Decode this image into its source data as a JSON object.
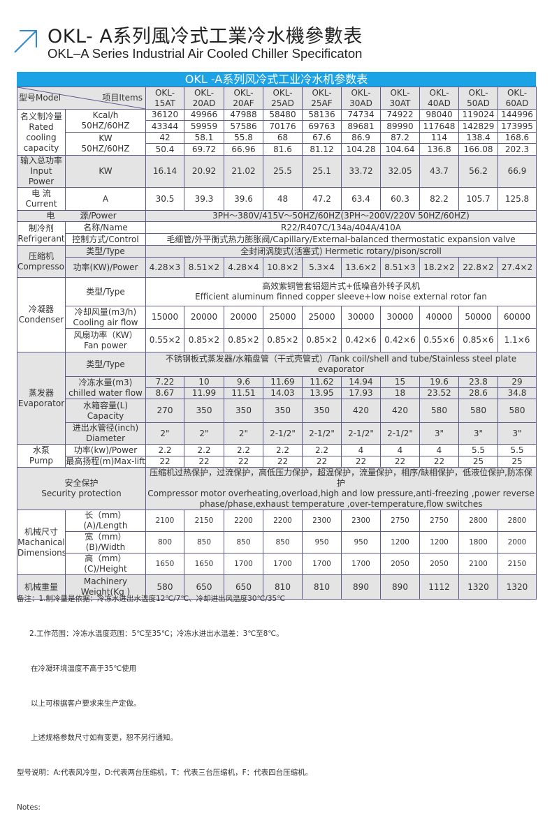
{
  "title": {
    "cn": "OKL- A系列風冷式工業冷水機參數表",
    "en": "OKL–A Series Industrial Air Cooled Chiller Specificaton",
    "accent_color": "#2a8ad0",
    "icon": "arrow-up-right-icon"
  },
  "banner": {
    "text": "OKL -A系列风冷式工业冷水机参数表",
    "color": "#1ba3e6"
  },
  "table": {
    "header": {
      "model_label": "型号Model",
      "items_label": "项目Items"
    },
    "models": [
      "OKL-\n15AT",
      "OKL-\n20AD",
      "OKL-\n20AF",
      "OKL-\n25AD",
      "OKL-\n25AF",
      "OKL-\n30AD",
      "OKL-\n30AT",
      "OKL-\n40AD",
      "OKL-\n50AD",
      "OKL-\n60AD"
    ],
    "cooling": {
      "label": "名义制冷量\nRated\ncooling\ncapacity",
      "kcal_unit": "Kcal/h\n50HZ/60HZ",
      "kw_unit": "KW\n50HZ/60HZ",
      "kcal_50": [
        "36120",
        "49966",
        "47988",
        "58480",
        "58136",
        "74734",
        "74922",
        "98040",
        "119024",
        "144996"
      ],
      "kcal_60": [
        "43344",
        "59959",
        "57586",
        "70176",
        "69763",
        "89681",
        "89990",
        "117648",
        "142829",
        "173995"
      ],
      "kw_50": [
        "42",
        "58.1",
        "55.8",
        "68",
        "67.6",
        "86.9",
        "87.2",
        "114",
        "138.4",
        "168.6"
      ],
      "kw_60": [
        "50.4",
        "69.72",
        "66.96",
        "81.6",
        "81.12",
        "104.28",
        "104.64",
        "136.8",
        "166.08",
        "202.3"
      ]
    },
    "input_power": {
      "label": "输入总功率\nInput Power",
      "unit": "KW",
      "values": [
        "16.14",
        "20.92",
        "21.02",
        "25.5",
        "25.1",
        "33.72",
        "32.05",
        "43.7",
        "56.2",
        "66.9"
      ]
    },
    "current": {
      "label": "电  流\nCurrent",
      "unit": "A",
      "values": [
        "30.5",
        "39.3",
        "39.6",
        "48",
        "47.2",
        "63.4",
        "60.3",
        "82.2",
        "105.7",
        "125.8"
      ]
    },
    "power_supply": {
      "label": "电　　　源/Power",
      "value": "3PH～380V/415V～50HZ/60HZ(3PH～200V/220V   50HZ/60HZ)"
    },
    "refrigerant": {
      "label": "制冷剂\nRefrigerant",
      "name_label": "名称/Name",
      "name_value": "R22/R407C/134a/404A/410A",
      "control_label": "控制方式/Control",
      "control_value": "毛细管/外平衡式热力膨胀阀/Capillary/External-balanced thermostatic expansion valve"
    },
    "compressor": {
      "label": "压缩机\nCompressor",
      "type_label": "类型/Type",
      "type_value": "全封闭涡旋式(活塞式)        Hermetic rotary/pison/scroll",
      "power_label": "功率(KW)/Power",
      "power_values": [
        "4.28×3",
        "8.51×2",
        "4.28×4",
        "10.8×2",
        "5.3×4",
        "13.6×2",
        "8.51×3",
        "18.2×2",
        "22.8×2",
        "27.4×2"
      ]
    },
    "condenser": {
      "label": "冷凝器\nCondenser",
      "type_label": "类型/Type",
      "type_value": "高效紫铜管套铝翅片式+低噪音外转子风机\nEfficient aluminum finned copper sleeve+low noise external rotor fan",
      "airflow_label": "冷却风量(m3/h)\nCooling air flow",
      "airflow_values": [
        "15000",
        "20000",
        "20000",
        "25000",
        "25000",
        "30000",
        "30000",
        "40000",
        "50000",
        "60000"
      ],
      "fan_label": "风扇功率（KW）\nFan power",
      "fan_values": [
        "0.55×2",
        "0.85×2",
        "0.85×2",
        "0.85×2",
        "0.85×2",
        "0.42×6",
        "0.42×6",
        "0.55×6",
        "0.85×6",
        "1.1×6"
      ]
    },
    "evaporator": {
      "label": "蒸发器\nEvaporator",
      "type_label": "类型/Type",
      "type_value": "不锈钢板式蒸发器/水箱盘管（干式壳管式）/Tank coil/shell and tube/Stainless steel plate evaporator",
      "water_label": "冷冻水量(m3)\nchilled water flow",
      "water_50": [
        "7.22",
        "10",
        "9.6",
        "11.69",
        "11.62",
        "14.94",
        "15",
        "19.6",
        "23.8",
        "29"
      ],
      "water_60": [
        "8.67",
        "11.99",
        "11.51",
        "14.03",
        "13.95",
        "17.93",
        "18",
        "23.52",
        "28.6",
        "34.8"
      ],
      "capacity_label": "水箱容量(L)\nCapacity",
      "capacity_values": [
        "270",
        "350",
        "350",
        "350",
        "350",
        "420",
        "420",
        "580",
        "580",
        "580"
      ],
      "diameter_label": "进出水管径(inch)\nDiameter",
      "diameter_values": [
        "2\"",
        "2\"",
        "2\"",
        "2-1/2\"",
        "2-1/2\"",
        "2-1/2\"",
        "2-1/2\"",
        "3\"",
        "3\"",
        "3\""
      ]
    },
    "pump": {
      "label": "水泵\nPump",
      "power_label": "功率(kw)/Power",
      "power_values": [
        "2.2",
        "2.2",
        "2.2",
        "2.2",
        "2.2",
        "4",
        "4",
        "4",
        "5.5",
        "5.5"
      ],
      "lift_label": "最高扬程(m)Max-lift",
      "lift_values": [
        "22",
        "22",
        "22",
        "22",
        "22",
        "22",
        "22",
        "22",
        "25",
        "25"
      ]
    },
    "security": {
      "label": "安全保护\nSecurity protection",
      "value": "压缩机过热保护，过流保护，高低压力保护，超温保护，流量保护，相序/缺相保护，低液位保护,防冻保护\nCompressor motor overheating,overload,high and low pressure,anti-freezing ,power reverse\nphase/phase,exhaust temperature ,over-temperature,flow switches"
    },
    "dimensions": {
      "label": "机械尺寸\nMachanical\nDimensions",
      "length_label": "长（mm）(A)/Length",
      "length_values": [
        "2100",
        "2150",
        "2200",
        "2200",
        "2300",
        "2300",
        "2750",
        "2750",
        "2800",
        "2800"
      ],
      "width_label": "宽（mm）(B)/Width",
      "width_values": [
        "800",
        "850",
        "850",
        "850",
        "950",
        "950",
        "1200",
        "1200",
        "1800",
        "2000"
      ],
      "height_label": "高（mm）(C)/Height",
      "height_values": [
        "1650",
        "1650",
        "1700",
        "1700",
        "1700",
        "1700",
        "2050",
        "2050",
        "2100",
        "2150"
      ]
    },
    "weight": {
      "label": "机械重量",
      "sub_label": "Machinery\nWeight(Kg )",
      "values": [
        "580",
        "650",
        "650",
        "810",
        "810",
        "890",
        "890",
        "1112",
        "1320",
        "1320"
      ]
    }
  },
  "notes": {
    "line1": "备注：1.制冷量是依据：冷冻水进出水温度12℃/7℃、冷却进出风温度30℃/35℃",
    "line2": "2.工作范围：冷冻水温度范围：5℃至35℃；冷冻水进出水温差：3℃至8℃。",
    "line3": "在冷凝环境温度不高于35℃使用",
    "line4": "以上可根据客户要求来生产定做。",
    "line5": "上述规格参数尺寸如有变更，恕不另行通知。",
    "line6": "型号说明：A:代表风冷型，D:代表两台压缩机，T：代表三台压缩机，F：代表四台压缩机。",
    "line7": "Notes:"
  }
}
